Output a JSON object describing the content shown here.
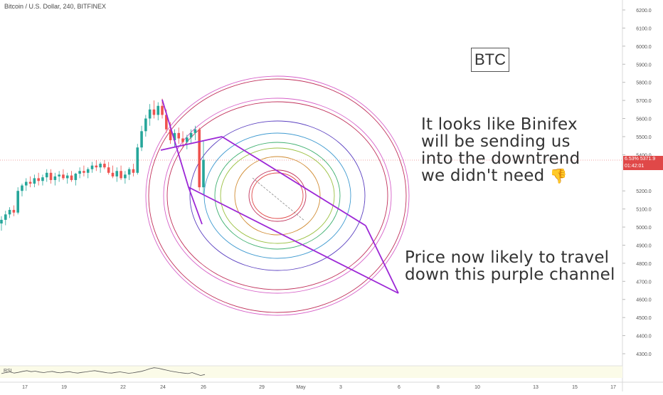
{
  "header": {
    "title": "Bitcoin / U.S. Dollar, 240, BITFINEX"
  },
  "chart_data": {
    "type": "candlestick",
    "symbol": "Bitcoin / U.S. Dollar",
    "interval": "240",
    "exchange": "BITFINEX",
    "y_ticks": [
      "6200.0",
      "6100.0",
      "6000.0",
      "5900.0",
      "5800.0",
      "5700.0",
      "5600.0",
      "5500.0",
      "5400.0",
      "5200.0",
      "5100.0",
      "5000.0",
      "4900.0",
      "4800.0",
      "4700.0",
      "4600.0",
      "4500.0",
      "4400.0",
      "4300.0"
    ],
    "x_ticks": [
      "17",
      "19",
      "22",
      "24",
      "26",
      "29",
      "May",
      "3",
      "6",
      "8",
      "10",
      "13",
      "15",
      "17"
    ],
    "ylim": [
      4250,
      6300
    ],
    "last_price": "5371.9",
    "change_badge": "6.53%",
    "countdown": "01:42:01",
    "ohlc": [
      {
        "o": 5020,
        "h": 5060,
        "l": 4980,
        "c": 5040
      },
      {
        "o": 5040,
        "h": 5090,
        "l": 5010,
        "c": 5070
      },
      {
        "o": 5070,
        "h": 5110,
        "l": 5050,
        "c": 5095
      },
      {
        "o": 5095,
        "h": 5120,
        "l": 5060,
        "c": 5080
      },
      {
        "o": 5080,
        "h": 5220,
        "l": 5070,
        "c": 5200
      },
      {
        "o": 5200,
        "h": 5240,
        "l": 5170,
        "c": 5230
      },
      {
        "o": 5230,
        "h": 5270,
        "l": 5200,
        "c": 5250
      },
      {
        "o": 5250,
        "h": 5280,
        "l": 5220,
        "c": 5240
      },
      {
        "o": 5240,
        "h": 5290,
        "l": 5220,
        "c": 5270
      },
      {
        "o": 5270,
        "h": 5300,
        "l": 5230,
        "c": 5255
      },
      {
        "o": 5255,
        "h": 5290,
        "l": 5230,
        "c": 5275
      },
      {
        "o": 5275,
        "h": 5320,
        "l": 5250,
        "c": 5300
      },
      {
        "o": 5300,
        "h": 5320,
        "l": 5240,
        "c": 5260
      },
      {
        "o": 5260,
        "h": 5300,
        "l": 5230,
        "c": 5280
      },
      {
        "o": 5280,
        "h": 5310,
        "l": 5250,
        "c": 5290
      },
      {
        "o": 5290,
        "h": 5320,
        "l": 5260,
        "c": 5270
      },
      {
        "o": 5270,
        "h": 5300,
        "l": 5240,
        "c": 5285
      },
      {
        "o": 5285,
        "h": 5310,
        "l": 5250,
        "c": 5260
      },
      {
        "o": 5260,
        "h": 5300,
        "l": 5230,
        "c": 5295
      },
      {
        "o": 5295,
        "h": 5330,
        "l": 5270,
        "c": 5310
      },
      {
        "o": 5310,
        "h": 5340,
        "l": 5280,
        "c": 5300
      },
      {
        "o": 5300,
        "h": 5330,
        "l": 5270,
        "c": 5320
      },
      {
        "o": 5320,
        "h": 5360,
        "l": 5300,
        "c": 5340
      },
      {
        "o": 5340,
        "h": 5370,
        "l": 5310,
        "c": 5330
      },
      {
        "o": 5330,
        "h": 5360,
        "l": 5300,
        "c": 5350
      },
      {
        "o": 5350,
        "h": 5370,
        "l": 5320,
        "c": 5330
      },
      {
        "o": 5330,
        "h": 5360,
        "l": 5290,
        "c": 5300
      },
      {
        "o": 5300,
        "h": 5340,
        "l": 5270,
        "c": 5280
      },
      {
        "o": 5280,
        "h": 5330,
        "l": 5250,
        "c": 5310
      },
      {
        "o": 5310,
        "h": 5340,
        "l": 5260,
        "c": 5270
      },
      {
        "o": 5270,
        "h": 5310,
        "l": 5240,
        "c": 5290
      },
      {
        "o": 5290,
        "h": 5330,
        "l": 5260,
        "c": 5320
      },
      {
        "o": 5320,
        "h": 5350,
        "l": 5280,
        "c": 5300
      },
      {
        "o": 5300,
        "h": 5460,
        "l": 5290,
        "c": 5440
      },
      {
        "o": 5440,
        "h": 5560,
        "l": 5420,
        "c": 5530
      },
      {
        "o": 5530,
        "h": 5620,
        "l": 5500,
        "c": 5600
      },
      {
        "o": 5600,
        "h": 5680,
        "l": 5560,
        "c": 5650
      },
      {
        "o": 5650,
        "h": 5700,
        "l": 5600,
        "c": 5620
      },
      {
        "o": 5620,
        "h": 5690,
        "l": 5590,
        "c": 5670
      },
      {
        "o": 5670,
        "h": 5710,
        "l": 5600,
        "c": 5620
      },
      {
        "o": 5620,
        "h": 5650,
        "l": 5520,
        "c": 5540
      },
      {
        "o": 5540,
        "h": 5580,
        "l": 5460,
        "c": 5480
      },
      {
        "o": 5480,
        "h": 5540,
        "l": 5440,
        "c": 5520
      },
      {
        "o": 5520,
        "h": 5550,
        "l": 5460,
        "c": 5490
      },
      {
        "o": 5490,
        "h": 5530,
        "l": 5440,
        "c": 5470
      },
      {
        "o": 5470,
        "h": 5510,
        "l": 5430,
        "c": 5495
      },
      {
        "o": 5495,
        "h": 5540,
        "l": 5460,
        "c": 5520
      },
      {
        "o": 5520,
        "h": 5560,
        "l": 5480,
        "c": 5540
      },
      {
        "o": 5540,
        "h": 5550,
        "l": 5200,
        "c": 5220
      },
      {
        "o": 5220,
        "h": 5480,
        "l": 5180,
        "c": 5372
      }
    ]
  },
  "annotations": {
    "box_label": "BTC",
    "note1": "It looks like Binifex\nwill be sending us\ninto the downtrend\nwe didn't need",
    "note1_emoji": "👎",
    "note2": "Price now likely to travel\ndown this purple channel"
  },
  "rsi": {
    "label": "RSI",
    "values": [
      48,
      52,
      55,
      50,
      53,
      57,
      60,
      56,
      58,
      54,
      52,
      55,
      57,
      53,
      51,
      54,
      56,
      52,
      50,
      53,
      55,
      58,
      60,
      57,
      54,
      51,
      50,
      53,
      55,
      52,
      49,
      51,
      54,
      57,
      62,
      68,
      72,
      70,
      66,
      62,
      58,
      55,
      52,
      50,
      48,
      52,
      46,
      40,
      44
    ]
  },
  "colors": {
    "bull": "#26a69a",
    "bear": "#ef5350",
    "channel": "#9c27d6",
    "price_line": "#e04848"
  }
}
